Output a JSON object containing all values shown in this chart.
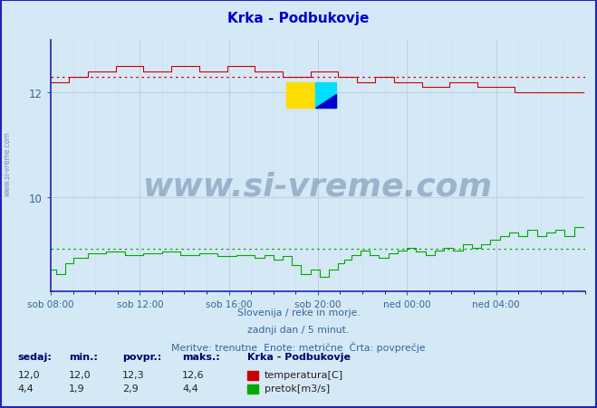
{
  "title": "Krka - Podbukovje",
  "bg_color": "#d5e8f5",
  "grid_color_h": "#bbccdd",
  "grid_color_v": "#ccddee",
  "axis_color": "#2222bb",
  "tick_color": "#336699",
  "temp_color": "#cc0000",
  "flow_color": "#00aa00",
  "temp_avg": 12.3,
  "flow_avg": 2.9,
  "ylim_min": 8.2,
  "ylim_max": 13.0,
  "ytick_vals": [
    10,
    12
  ],
  "xlabel_times": [
    "sob 08:00",
    "sob 12:00",
    "sob 16:00",
    "sob 20:00",
    "ned 00:00",
    "ned 04:00"
  ],
  "n_points": 288,
  "temp_min": 12.0,
  "temp_max": 12.6,
  "flow_min": 1.9,
  "flow_max": 4.4,
  "footer_line1": "Slovenija / reke in morje.",
  "footer_line2": "zadnji dan / 5 minut.",
  "footer_line3": "Meritve: trenutne  Enote: metrične  Črta: povprečje",
  "legend_title": "Krka - Podbukovje",
  "legend_temp_label": "temperatura[C]",
  "legend_flow_label": "pretok[m3/s]",
  "label_sedaj": "sedaj:",
  "label_min": "min.:",
  "label_povpr": "povpr.:",
  "label_maks": "maks.:",
  "val_sedaj_temp": "12,0",
  "val_min_temp": "12,0",
  "val_povpr_temp": "12,3",
  "val_maks_temp": "12,6",
  "val_sedaj_flow": "4,4",
  "val_min_flow": "1,9",
  "val_povpr_flow": "2,9",
  "val_maks_flow": "4,4",
  "watermark_text": "www.si-vreme.com",
  "watermark_color": "#1a3a6e",
  "watermark_alpha": 0.3,
  "side_text": "www.si-vreme.com",
  "title_color": "#0000cc",
  "footer_color": "#336699",
  "stats_color": "#000066"
}
